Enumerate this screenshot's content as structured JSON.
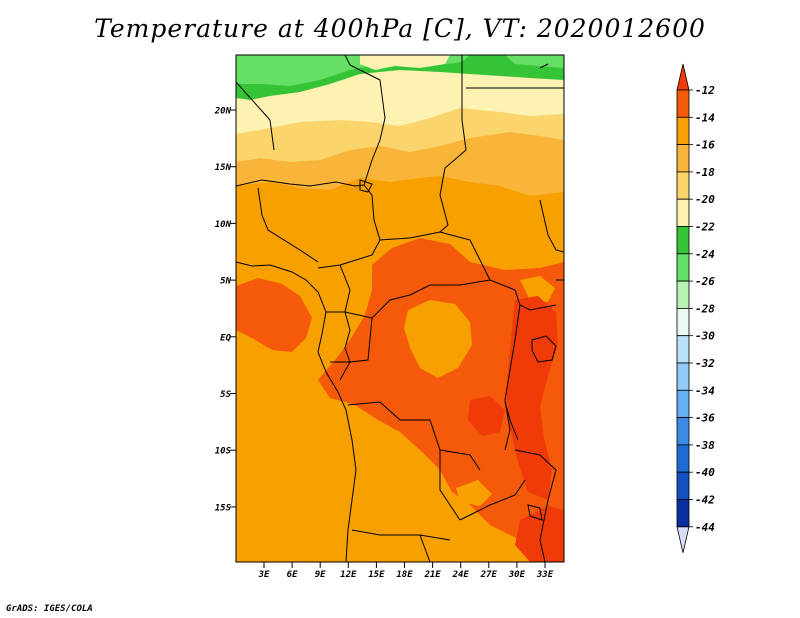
{
  "title": "Temperature at 400hPa [C], VT: 2020012600",
  "credit": "GrADS: IGES/COLA",
  "map": {
    "variable": "Temperature",
    "level": "400hPa",
    "units": "C",
    "valid_time": "2020012600",
    "lat_labels": [
      "20N",
      "15N",
      "10N",
      "5N",
      "EQ",
      "5S",
      "10S",
      "15S"
    ],
    "lon_labels": [
      "3E",
      "6E",
      "9E",
      "12E",
      "15E",
      "18E",
      "21E",
      "24E",
      "27E",
      "30E",
      "33E"
    ],
    "lat_range": [
      -20,
      24.5
    ],
    "lon_range": [
      0,
      35
    ]
  },
  "colorbar": {
    "levels": [
      "-12",
      "-14",
      "-16",
      "-18",
      "-20",
      "-22",
      "-24",
      "-26",
      "-28",
      "-30",
      "-32",
      "-34",
      "-36",
      "-38",
      "-40",
      "-42",
      "-44"
    ],
    "colors": [
      "#f03b08",
      "#f55a0a",
      "#f8a000",
      "#f9b43a",
      "#fbd56c",
      "#fdf2b2",
      "#36c437",
      "#66df66",
      "#b6f2b2",
      "#eaf9f3",
      "#b8e1fa",
      "#91cbf6",
      "#64afef",
      "#3a8ae6",
      "#1f6bd6",
      "#1550c0",
      "#0a30a0",
      "#100d70"
    ],
    "top_tip_color": "#f03b08",
    "bottom_tip_color": "#d9dcf8"
  }
}
